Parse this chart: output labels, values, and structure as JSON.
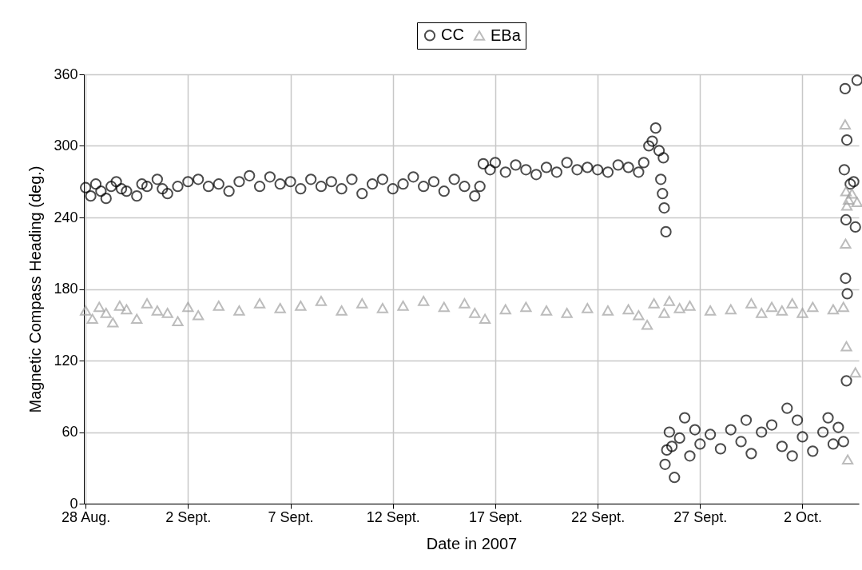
{
  "chart_data": {
    "type": "scatter",
    "xlabel": "Date in 2007",
    "ylabel": "Magnetic Compass Heading (deg.)",
    "xlim": [
      "2007-08-27T22:00",
      "2007-10-04T18:00"
    ],
    "xticks": [
      {
        "value": "2007-08-28",
        "label": "28 Aug."
      },
      {
        "value": "2007-09-02",
        "label": "2 Sept."
      },
      {
        "value": "2007-09-07",
        "label": "7 Sept."
      },
      {
        "value": "2007-09-12",
        "label": "12 Sept."
      },
      {
        "value": "2007-09-17",
        "label": "17 Sept."
      },
      {
        "value": "2007-09-22",
        "label": "22 Sept."
      },
      {
        "value": "2007-09-27",
        "label": "27 Sept."
      },
      {
        "value": "2007-10-02",
        "label": "2 Oct."
      }
    ],
    "ylim": [
      0,
      360
    ],
    "yticks": [
      0,
      60,
      120,
      180,
      240,
      300,
      360
    ],
    "grid": true,
    "legend": "top",
    "series": [
      {
        "name": "CC",
        "color": "#000000",
        "marker": "circle",
        "x": [
          "2007-08-28T00:00",
          "2007-08-28T06:00",
          "2007-08-28T12:00",
          "2007-08-28T18:00",
          "2007-08-29T00:00",
          "2007-08-29T06:00",
          "2007-08-29T12:00",
          "2007-08-29T18:00",
          "2007-08-30T00:00",
          "2007-08-30T12:00",
          "2007-08-30T18:00",
          "2007-08-31T00:00",
          "2007-08-31T12:00",
          "2007-08-31T18:00",
          "2007-09-01T00:00",
          "2007-09-01T12:00",
          "2007-09-02T00:00",
          "2007-09-02T12:00",
          "2007-09-03T00:00",
          "2007-09-03T12:00",
          "2007-09-04T00:00",
          "2007-09-04T12:00",
          "2007-09-05T00:00",
          "2007-09-05T12:00",
          "2007-09-06T00:00",
          "2007-09-06T12:00",
          "2007-09-07T00:00",
          "2007-09-07T12:00",
          "2007-09-08T00:00",
          "2007-09-08T12:00",
          "2007-09-09T00:00",
          "2007-09-09T12:00",
          "2007-09-10T00:00",
          "2007-09-10T12:00",
          "2007-09-11T00:00",
          "2007-09-11T12:00",
          "2007-09-12T00:00",
          "2007-09-12T12:00",
          "2007-09-13T00:00",
          "2007-09-13T12:00",
          "2007-09-14T00:00",
          "2007-09-14T12:00",
          "2007-09-15T00:00",
          "2007-09-15T12:00",
          "2007-09-16T00:00",
          "2007-09-16T06:00",
          "2007-09-16T10:00",
          "2007-09-16T18:00",
          "2007-09-17T00:00",
          "2007-09-17T12:00",
          "2007-09-18T00:00",
          "2007-09-18T12:00",
          "2007-09-19T00:00",
          "2007-09-19T12:00",
          "2007-09-20T00:00",
          "2007-09-20T12:00",
          "2007-09-21T00:00",
          "2007-09-21T12:00",
          "2007-09-22T00:00",
          "2007-09-22T12:00",
          "2007-09-23T00:00",
          "2007-09-23T12:00",
          "2007-09-24T00:00",
          "2007-09-24T06:00",
          "2007-09-24T12:00",
          "2007-09-24T16:00",
          "2007-09-24T20:00",
          "2007-09-25T00:00",
          "2007-09-25T02:00",
          "2007-09-25T04:00",
          "2007-09-25T05:00",
          "2007-09-25T06:00",
          "2007-09-25T08:00",
          "2007-09-25T07:00",
          "2007-09-25T09:00",
          "2007-09-25T12:00",
          "2007-09-25T15:00",
          "2007-09-25T18:00",
          "2007-09-26T00:00",
          "2007-09-26T06:00",
          "2007-09-26T12:00",
          "2007-09-26T18:00",
          "2007-09-27T00:00",
          "2007-09-27T12:00",
          "2007-09-28T00:00",
          "2007-09-28T12:00",
          "2007-09-29T00:00",
          "2007-09-29T06:00",
          "2007-09-29T12:00",
          "2007-09-30T00:00",
          "2007-09-30T12:00",
          "2007-10-01T00:00",
          "2007-10-01T06:00",
          "2007-10-01T12:00",
          "2007-10-01T18:00",
          "2007-10-02T00:00",
          "2007-10-02T12:00",
          "2007-10-03T00:00",
          "2007-10-03T06:00",
          "2007-10-03T12:00",
          "2007-10-03T18:00",
          "2007-10-04T00:00",
          "2007-10-04T01:00",
          "2007-10-04T02:00",
          "2007-10-04T03:00",
          "2007-10-04T02:30",
          "2007-10-04T04:00",
          "2007-10-04T04:30",
          "2007-10-04T03:30",
          "2007-10-04T08:00",
          "2007-10-04T12:00",
          "2007-10-04T14:00",
          "2007-10-04T16:00"
        ],
        "values": [
          265,
          258,
          268,
          262,
          256,
          266,
          270,
          264,
          262,
          258,
          268,
          266,
          272,
          264,
          260,
          266,
          270,
          272,
          266,
          268,
          262,
          270,
          275,
          266,
          274,
          268,
          270,
          264,
          272,
          266,
          270,
          264,
          272,
          260,
          268,
          272,
          264,
          268,
          274,
          266,
          270,
          262,
          272,
          266,
          258,
          266,
          285,
          280,
          286,
          278,
          284,
          280,
          276,
          282,
          278,
          286,
          280,
          282,
          280,
          278,
          284,
          282,
          278,
          286,
          300,
          304,
          315,
          296,
          272,
          260,
          290,
          248,
          228,
          33,
          45,
          60,
          48,
          22,
          55,
          72,
          40,
          62,
          50,
          58,
          46,
          62,
          52,
          70,
          42,
          60,
          66,
          48,
          80,
          40,
          70,
          56,
          44,
          60,
          72,
          50,
          64,
          52,
          280,
          348,
          238,
          189,
          305,
          176,
          103,
          268,
          270,
          232,
          355
        ]
      },
      {
        "name": "EBa",
        "color": "#a0a0a0",
        "marker": "triangle",
        "x": [
          "2007-08-28T00:00",
          "2007-08-28T08:00",
          "2007-08-28T16:00",
          "2007-08-29T00:00",
          "2007-08-29T08:00",
          "2007-08-29T16:00",
          "2007-08-30T00:00",
          "2007-08-30T12:00",
          "2007-08-31T00:00",
          "2007-08-31T12:00",
          "2007-09-01T00:00",
          "2007-09-01T12:00",
          "2007-09-02T00:00",
          "2007-09-02T12:00",
          "2007-09-03T12:00",
          "2007-09-04T12:00",
          "2007-09-05T12:00",
          "2007-09-06T12:00",
          "2007-09-07T12:00",
          "2007-09-08T12:00",
          "2007-09-09T12:00",
          "2007-09-10T12:00",
          "2007-09-11T12:00",
          "2007-09-12T12:00",
          "2007-09-13T12:00",
          "2007-09-14T12:00",
          "2007-09-15T12:00",
          "2007-09-16T00:00",
          "2007-09-16T12:00",
          "2007-09-17T12:00",
          "2007-09-18T12:00",
          "2007-09-19T12:00",
          "2007-09-20T12:00",
          "2007-09-21T12:00",
          "2007-09-22T12:00",
          "2007-09-23T12:00",
          "2007-09-24T00:00",
          "2007-09-24T10:00",
          "2007-09-24T18:00",
          "2007-09-25T06:00",
          "2007-09-25T12:00",
          "2007-09-26T00:00",
          "2007-09-26T12:00",
          "2007-09-27T12:00",
          "2007-09-28T12:00",
          "2007-09-29T12:00",
          "2007-09-30T00:00",
          "2007-09-30T12:00",
          "2007-10-01T00:00",
          "2007-10-01T12:00",
          "2007-10-02T00:00",
          "2007-10-02T12:00",
          "2007-10-03T12:00",
          "2007-10-04T00:00",
          "2007-10-04T02:00",
          "2007-10-04T03:00",
          "2007-10-04T04:00",
          "2007-10-04T02:30",
          "2007-10-04T03:30",
          "2007-10-04T05:00",
          "2007-10-04T06:00",
          "2007-10-04T10:00",
          "2007-10-04T14:00",
          "2007-10-04T16:00"
        ],
        "values": [
          162,
          155,
          165,
          160,
          152,
          166,
          163,
          155,
          168,
          162,
          160,
          153,
          165,
          158,
          166,
          162,
          168,
          164,
          166,
          170,
          162,
          168,
          164,
          166,
          170,
          165,
          168,
          160,
          155,
          163,
          165,
          162,
          160,
          164,
          162,
          163,
          158,
          150,
          168,
          160,
          170,
          164,
          166,
          162,
          163,
          168,
          160,
          165,
          162,
          168,
          160,
          165,
          163,
          165,
          318,
          262,
          250,
          218,
          132,
          37,
          255,
          260,
          110,
          253
        ]
      }
    ]
  }
}
